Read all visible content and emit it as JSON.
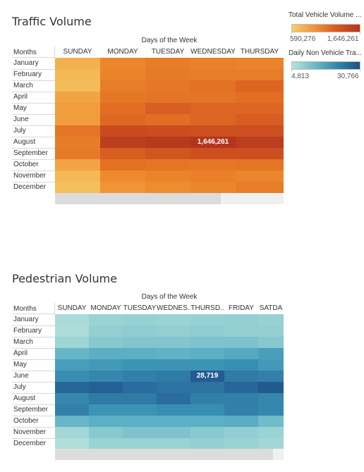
{
  "legend": {
    "traffic": {
      "title": "Total Vehicle Volume ...",
      "min_label": "590,276",
      "max_label": "1,646,261",
      "min": 590276,
      "max": 1646261,
      "color_low": "#f5cf6d",
      "color_high": "#b2351e"
    },
    "pedestrian": {
      "title": "Daily Non Vehicle Tra...",
      "min_label": "4,813",
      "max_label": "30,766",
      "min": 4813,
      "max": 30766,
      "color_low": "#b9e3dc",
      "color_high": "#1e4f87"
    }
  },
  "chart_data": [
    {
      "type": "heatmap",
      "title": "Traffic Volume",
      "x_axis_title": "Days of the Week",
      "row_header": "Months",
      "columns": [
        "SUNDAY",
        "MONDAY",
        "TUESDAY",
        "WEDNESDAY",
        "THURSDAY"
      ],
      "rows": [
        "January",
        "February",
        "March",
        "April",
        "May",
        "June",
        "July",
        "August",
        "September",
        "October",
        "November",
        "December"
      ],
      "color_min": 590276,
      "color_max": 1646261,
      "values": [
        [
          760000,
          1040000,
          1100000,
          1080000,
          1060000
        ],
        [
          720000,
          1060000,
          1120000,
          1100000,
          1100000
        ],
        [
          700000,
          1100000,
          1140000,
          1180000,
          1260000
        ],
        [
          840000,
          1140000,
          1160000,
          1160000,
          1200000
        ],
        [
          880000,
          1200000,
          1300000,
          1260000,
          1250000
        ],
        [
          880000,
          1240000,
          1200000,
          1260000,
          1300000
        ],
        [
          1150000,
          1440000,
          1420000,
          1400000,
          1400000
        ],
        [
          1100000,
          1560000,
          1600000,
          1646261,
          1560000
        ],
        [
          1120000,
          1300000,
          1360000,
          1400000,
          1400000
        ],
        [
          840000,
          1180000,
          1160000,
          1140000,
          1160000
        ],
        [
          720000,
          1020000,
          1060000,
          1080000,
          1040000
        ],
        [
          680000,
          940000,
          1000000,
          1040000,
          1100000
        ]
      ],
      "annotation": {
        "row": 7,
        "col": 3,
        "label": "1,646,261"
      }
    },
    {
      "type": "heatmap",
      "title": "Pedestrian Volume",
      "x_axis_title": "Days of the Week",
      "row_header": "Months",
      "columns": [
        "SUNDAY",
        "MONDAY",
        "TUESDAY",
        "WEDNES..",
        "THURSD..",
        "FRIDAY",
        "SATDA"
      ],
      "rows": [
        "January",
        "February",
        "March",
        "April",
        "May",
        "June",
        "July",
        "August",
        "September",
        "October",
        "November",
        "December"
      ],
      "color_min": 4813,
      "color_max": 30766,
      "values": [
        [
          7000,
          9000,
          9500,
          9000,
          9500,
          10000,
          9500
        ],
        [
          6500,
          10000,
          10500,
          10000,
          10500,
          10000,
          10000
        ],
        [
          8500,
          11000,
          11500,
          11500,
          12000,
          12000,
          11000
        ],
        [
          14000,
          15000,
          15000,
          14500,
          15000,
          16000,
          18000
        ],
        [
          18000,
          19000,
          20000,
          20000,
          20000,
          21000,
          19000
        ],
        [
          21000,
          22000,
          23000,
          24000,
          28719,
          24000,
          23000
        ],
        [
          27000,
          28000,
          26000,
          25000,
          25000,
          27000,
          29000
        ],
        [
          22000,
          24000,
          24000,
          26000,
          23000,
          23000,
          22000
        ],
        [
          23000,
          20000,
          20000,
          21000,
          21000,
          23000,
          22000
        ],
        [
          14000,
          15000,
          15000,
          15000,
          15000,
          15500,
          13000
        ],
        [
          8000,
          11000,
          12000,
          12000,
          11000,
          10000,
          9000
        ],
        [
          6000,
          9000,
          9000,
          9000,
          10000,
          9000,
          8000
        ]
      ],
      "annotation": {
        "row": 5,
        "col": 4,
        "label": "28,719"
      }
    }
  ]
}
